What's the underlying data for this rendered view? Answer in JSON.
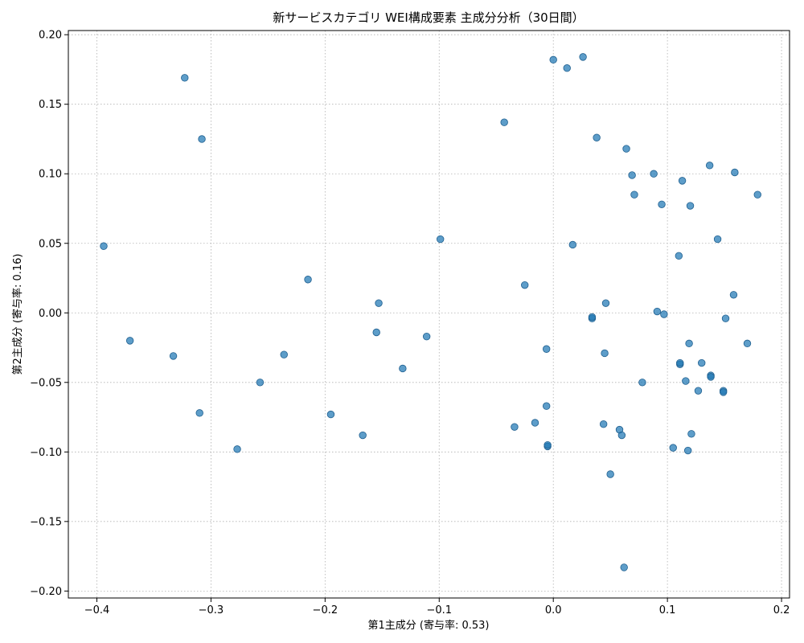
{
  "chart_data": {
    "type": "scatter",
    "title": "新サービスカテゴリ WEI構成要素 主成分分析（30日間）",
    "xlabel": "第1主成分 (寄与率: 0.53)",
    "ylabel": "第2主成分 (寄与率: 0.16)",
    "xlim": [
      -0.425,
      0.207
    ],
    "ylim": [
      -0.205,
      0.203
    ],
    "xticks": [
      -0.4,
      -0.3,
      -0.2,
      -0.1,
      0.0,
      0.1,
      0.2
    ],
    "xtick_labels": [
      "−0.4",
      "−0.3",
      "−0.2",
      "−0.1",
      "0.0",
      "0.1",
      "0.2"
    ],
    "yticks": [
      -0.2,
      -0.15,
      -0.1,
      -0.05,
      0.0,
      0.05,
      0.1,
      0.15,
      0.2
    ],
    "ytick_labels": [
      "−0.20",
      "−0.15",
      "−0.10",
      "−0.05",
      "0.00",
      "0.05",
      "0.10",
      "0.15",
      "0.20"
    ],
    "grid": true,
    "marker_color": "#1f77b4",
    "points": [
      {
        "x": -0.323,
        "y": 0.169
      },
      {
        "x": -0.308,
        "y": 0.125
      },
      {
        "x": -0.394,
        "y": 0.048
      },
      {
        "x": -0.371,
        "y": -0.02
      },
      {
        "x": -0.333,
        "y": -0.031
      },
      {
        "x": -0.31,
        "y": -0.072
      },
      {
        "x": -0.277,
        "y": -0.098
      },
      {
        "x": -0.257,
        "y": -0.05
      },
      {
        "x": -0.236,
        "y": -0.03
      },
      {
        "x": -0.215,
        "y": 0.024
      },
      {
        "x": -0.195,
        "y": -0.073
      },
      {
        "x": -0.167,
        "y": -0.088
      },
      {
        "x": -0.153,
        "y": 0.007
      },
      {
        "x": -0.155,
        "y": -0.014
      },
      {
        "x": -0.132,
        "y": -0.04
      },
      {
        "x": -0.111,
        "y": -0.017
      },
      {
        "x": -0.099,
        "y": 0.053
      },
      {
        "x": -0.043,
        "y": 0.137
      },
      {
        "x": -0.034,
        "y": -0.082
      },
      {
        "x": -0.025,
        "y": 0.02
      },
      {
        "x": -0.016,
        "y": -0.079
      },
      {
        "x": -0.006,
        "y": -0.026
      },
      {
        "x": -0.006,
        "y": -0.067
      },
      {
        "x": -0.005,
        "y": -0.096
      },
      {
        "x": -0.005,
        "y": -0.095
      },
      {
        "x": 0.0,
        "y": 0.182
      },
      {
        "x": 0.012,
        "y": 0.176
      },
      {
        "x": 0.026,
        "y": 0.184
      },
      {
        "x": 0.017,
        "y": 0.049
      },
      {
        "x": 0.034,
        "y": -0.004
      },
      {
        "x": 0.034,
        "y": -0.003
      },
      {
        "x": 0.038,
        "y": 0.126
      },
      {
        "x": 0.044,
        "y": -0.08
      },
      {
        "x": 0.045,
        "y": -0.029
      },
      {
        "x": 0.046,
        "y": 0.007
      },
      {
        "x": 0.05,
        "y": -0.116
      },
      {
        "x": 0.058,
        "y": -0.084
      },
      {
        "x": 0.06,
        "y": -0.088
      },
      {
        "x": 0.062,
        "y": -0.183
      },
      {
        "x": 0.064,
        "y": 0.118
      },
      {
        "x": 0.069,
        "y": 0.099
      },
      {
        "x": 0.071,
        "y": 0.085
      },
      {
        "x": 0.078,
        "y": -0.05
      },
      {
        "x": 0.088,
        "y": 0.1
      },
      {
        "x": 0.091,
        "y": 0.001
      },
      {
        "x": 0.095,
        "y": 0.078
      },
      {
        "x": 0.097,
        "y": -0.001
      },
      {
        "x": 0.105,
        "y": -0.097
      },
      {
        "x": 0.11,
        "y": 0.041
      },
      {
        "x": 0.111,
        "y": -0.037
      },
      {
        "x": 0.111,
        "y": -0.036
      },
      {
        "x": 0.113,
        "y": 0.095
      },
      {
        "x": 0.116,
        "y": -0.049
      },
      {
        "x": 0.118,
        "y": -0.099
      },
      {
        "x": 0.119,
        "y": -0.022
      },
      {
        "x": 0.12,
        "y": 0.077
      },
      {
        "x": 0.121,
        "y": -0.087
      },
      {
        "x": 0.127,
        "y": -0.056
      },
      {
        "x": 0.13,
        "y": -0.036
      },
      {
        "x": 0.137,
        "y": 0.106
      },
      {
        "x": 0.138,
        "y": -0.045
      },
      {
        "x": 0.138,
        "y": -0.046
      },
      {
        "x": 0.144,
        "y": 0.053
      },
      {
        "x": 0.149,
        "y": -0.056
      },
      {
        "x": 0.149,
        "y": -0.057
      },
      {
        "x": 0.151,
        "y": -0.004
      },
      {
        "x": 0.158,
        "y": 0.013
      },
      {
        "x": 0.159,
        "y": 0.101
      },
      {
        "x": 0.17,
        "y": -0.022
      },
      {
        "x": 0.179,
        "y": 0.085
      }
    ]
  }
}
